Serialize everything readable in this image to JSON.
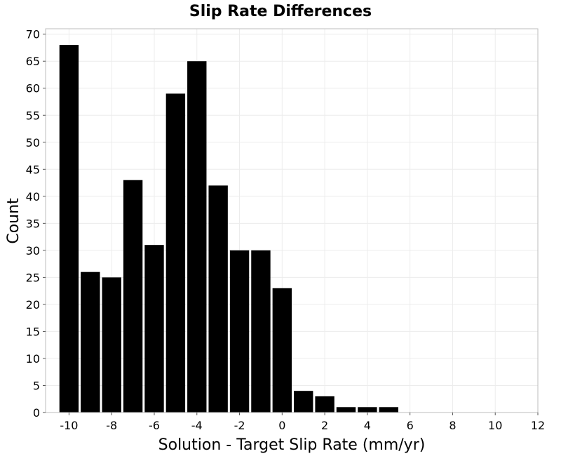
{
  "chart_data": {
    "type": "bar",
    "title": "Slip Rate Differences",
    "xlabel": "Solution - Target Slip Rate (mm/yr)",
    "ylabel": "Count",
    "bin_width": 1,
    "bins": [
      {
        "center": -10,
        "count": 68
      },
      {
        "center": -9,
        "count": 26
      },
      {
        "center": -8,
        "count": 25
      },
      {
        "center": -7,
        "count": 43
      },
      {
        "center": -6,
        "count": 31
      },
      {
        "center": -5,
        "count": 59
      },
      {
        "center": -4,
        "count": 65
      },
      {
        "center": -3,
        "count": 42
      },
      {
        "center": -2,
        "count": 30
      },
      {
        "center": -1,
        "count": 30
      },
      {
        "center": 0,
        "count": 23
      },
      {
        "center": 1,
        "count": 4
      },
      {
        "center": 2,
        "count": 3
      },
      {
        "center": 3,
        "count": 1
      },
      {
        "center": 4,
        "count": 1
      },
      {
        "center": 5,
        "count": 1
      }
    ],
    "xlim": [
      -11.1,
      12
    ],
    "ylim": [
      0,
      71
    ],
    "xticks": [
      -10,
      -8,
      -6,
      -4,
      -2,
      0,
      2,
      4,
      6,
      8,
      10,
      12
    ],
    "xtick_labels": [
      "-10",
      "-8",
      "-6",
      "-4",
      "-2",
      "0",
      "2",
      "4",
      "6",
      "8",
      "10",
      "12"
    ],
    "yticks": [
      0,
      5,
      10,
      15,
      20,
      25,
      30,
      35,
      40,
      45,
      50,
      55,
      60,
      65,
      70
    ],
    "ytick_labels": [
      "0",
      "5",
      "10",
      "15",
      "20",
      "25",
      "30",
      "35",
      "40",
      "45",
      "50",
      "55",
      "60",
      "65",
      "70"
    ],
    "grid": true,
    "legend": "none",
    "bar_color": "#000000",
    "grid_color": "#ececec"
  }
}
